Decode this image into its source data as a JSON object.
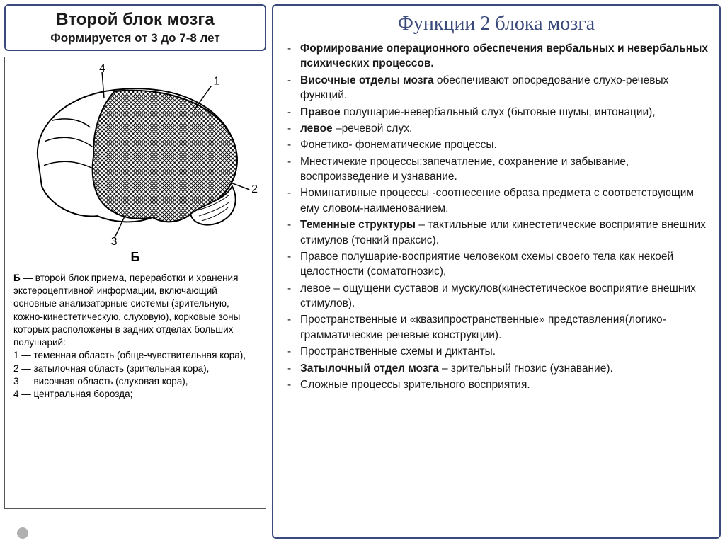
{
  "left": {
    "title": "Второй блок мозга",
    "subtitle": "Формируется от 3 до 7-8 лет",
    "diagram": {
      "label": "Б",
      "markers": [
        "1",
        "2",
        "3",
        "4"
      ],
      "legend_prefix": "Б",
      "legend_body": " — второй блок приема, переработки и хранения экстероцептивной информации, включающий основные анализаторные системы (зрительную, кожно-кинестетическую, слуховую), корковые зоны которых расположены в задних отделах больших полушарий:",
      "legend_items": [
        "1 — теменная область (обще-чувствительная кора),",
        "2 — затылочная область (зрительная кора),",
        "3 — височная область (слуховая кора),",
        "4 — центральная борозда;"
      ]
    }
  },
  "right": {
    "title": "Функции 2 блока мозга",
    "items": [
      {
        "segs": [
          {
            "t": "Формирование операционного обеспечения вербальных и невербальных психических процессов.",
            "b": true
          }
        ]
      },
      {
        "segs": [
          {
            "t": "Височные отделы мозга",
            "b": true
          },
          {
            "t": " обеспечивают опосредование слухо-речевых функций."
          }
        ]
      },
      {
        "segs": [
          {
            "t": "Правое",
            "b": true
          },
          {
            "t": " полушарие-невербальный слух (бытовые шумы, интонации),"
          }
        ]
      },
      {
        "segs": [
          {
            "t": "левое",
            "b": true
          },
          {
            "t": " –речевой слух."
          }
        ]
      },
      {
        "segs": [
          {
            "t": "Фонетико- фонематические процессы."
          }
        ]
      },
      {
        "segs": [
          {
            "t": "Мнестичекие процессы:запечатление, сохранение и забывание, воспроизведение и узнавание."
          }
        ]
      },
      {
        "segs": [
          {
            "t": "Номинативные процессы -соотнесение образа предмета с соответствующим ему словом-наименованием."
          }
        ]
      },
      {
        "segs": [
          {
            "t": "Теменные структуры",
            "b": true
          },
          {
            "t": " – тактильные или кинестетические восприятие внешних стимулов (тонкий праксис)."
          }
        ]
      },
      {
        "segs": [
          {
            "t": "Правое полушарие-восприятие человеком схемы своего тела как некоей целостности (соматогнозис),"
          }
        ]
      },
      {
        "segs": [
          {
            "t": "левое – ощущени суставов и мускулов(кинестетическое восприятие внешних стимулов)."
          }
        ]
      },
      {
        "segs": [
          {
            "t": "Пространственные и «квазипространственные» представления(логико-грамматические речевые конструкции)."
          }
        ]
      },
      {
        "segs": [
          {
            "t": "Пространственные схемы и диктанты."
          }
        ]
      },
      {
        "segs": [
          {
            "t": "Затылочный отдел мозга",
            "b": true
          },
          {
            "t": " – зрительный гнозис (узнавание)."
          }
        ]
      },
      {
        "segs": [
          {
            "t": "Сложные процессы зрительного восприятия."
          }
        ]
      }
    ]
  },
  "colors": {
    "border": "#3a4a7a",
    "title_color": "#3a4a7a"
  }
}
